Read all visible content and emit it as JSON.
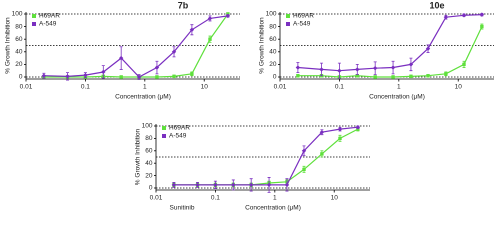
{
  "chart_data": [
    {
      "type": "line",
      "title": "7b",
      "x_label": "Concentration (μM)",
      "y_label": "% Growth Inhibition",
      "x": [
        0.02,
        0.05,
        0.1,
        0.2,
        0.4,
        0.8,
        1.6,
        3.1,
        6.2,
        12.5,
        25
      ],
      "xlim": [
        0.01,
        40
      ],
      "xticks": [
        0.01,
        0.1,
        1,
        10
      ],
      "log_x": true,
      "ylim": [
        0,
        100
      ],
      "yticks": [
        0,
        20,
        40,
        60,
        80,
        100
      ],
      "reference_lines": [
        0,
        50,
        100
      ],
      "legend": "top-left",
      "series": [
        {
          "name": "H69AR",
          "color": "#5fe03c",
          "values": [
            0,
            0,
            0,
            1,
            0,
            0,
            0,
            1,
            5,
            60,
            100
          ],
          "errors": [
            2,
            2,
            2,
            2,
            2,
            2,
            2,
            2,
            3,
            5,
            2
          ]
        },
        {
          "name": "A-549",
          "color": "#7a2fc0",
          "values": [
            2,
            1,
            3,
            8,
            30,
            0,
            15,
            40,
            75,
            93,
            97
          ],
          "errors": [
            4,
            6,
            4,
            10,
            18,
            4,
            10,
            8,
            8,
            4,
            2
          ]
        }
      ]
    },
    {
      "type": "line",
      "title": "10e",
      "x_label": "Concentration (μM)",
      "y_label": "% Growth Inhibition",
      "x": [
        0.02,
        0.05,
        0.1,
        0.2,
        0.4,
        0.8,
        1.6,
        3.1,
        6.2,
        12.5,
        25
      ],
      "xlim": [
        0.01,
        40
      ],
      "xticks": [
        0.01,
        0.1,
        1,
        10
      ],
      "log_x": true,
      "ylim": [
        0,
        100
      ],
      "yticks": [
        0,
        20,
        40,
        60,
        80,
        100
      ],
      "reference_lines": [
        0,
        50,
        100
      ],
      "legend": "top-left",
      "series": [
        {
          "name": "H69AR",
          "color": "#5fe03c",
          "values": [
            2,
            2,
            0,
            2,
            0,
            0,
            1,
            2,
            5,
            20,
            80
          ],
          "errors": [
            2,
            2,
            2,
            2,
            2,
            2,
            2,
            2,
            3,
            5,
            4
          ]
        },
        {
          "name": "A-549",
          "color": "#7a2fc0",
          "values": [
            15,
            12,
            10,
            12,
            14,
            15,
            20,
            45,
            95,
            98,
            99
          ],
          "errors": [
            8,
            10,
            12,
            8,
            10,
            10,
            10,
            6,
            3,
            2,
            2
          ]
        }
      ]
    },
    {
      "type": "line",
      "annotation": "Sunitinib",
      "x_label": "Concentration (μM)",
      "y_label": "% Growth Inhibition",
      "x": [
        0.02,
        0.05,
        0.1,
        0.2,
        0.4,
        0.8,
        1.6,
        3.1,
        6.2,
        12.5,
        25
      ],
      "xlim": [
        0.01,
        40
      ],
      "xticks": [
        0.01,
        0.1,
        1,
        10
      ],
      "log_x": true,
      "ylim": [
        0,
        100
      ],
      "yticks": [
        0,
        20,
        40,
        60,
        80,
        100
      ],
      "reference_lines": [
        0,
        50,
        100
      ],
      "legend": "top-left",
      "series": [
        {
          "name": "H69AR",
          "color": "#5fe03c",
          "values": [
            5,
            5,
            5,
            5,
            5,
            8,
            10,
            30,
            55,
            80,
            95
          ],
          "errors": [
            3,
            3,
            3,
            3,
            3,
            3,
            4,
            5,
            5,
            5,
            3
          ]
        },
        {
          "name": "A-549",
          "color": "#7a2fc0",
          "values": [
            5,
            5,
            5,
            5,
            5,
            5,
            5,
            60,
            90,
            95,
            98
          ],
          "errors": [
            4,
            4,
            6,
            8,
            10,
            12,
            10,
            8,
            4,
            3,
            2
          ]
        }
      ]
    }
  ]
}
